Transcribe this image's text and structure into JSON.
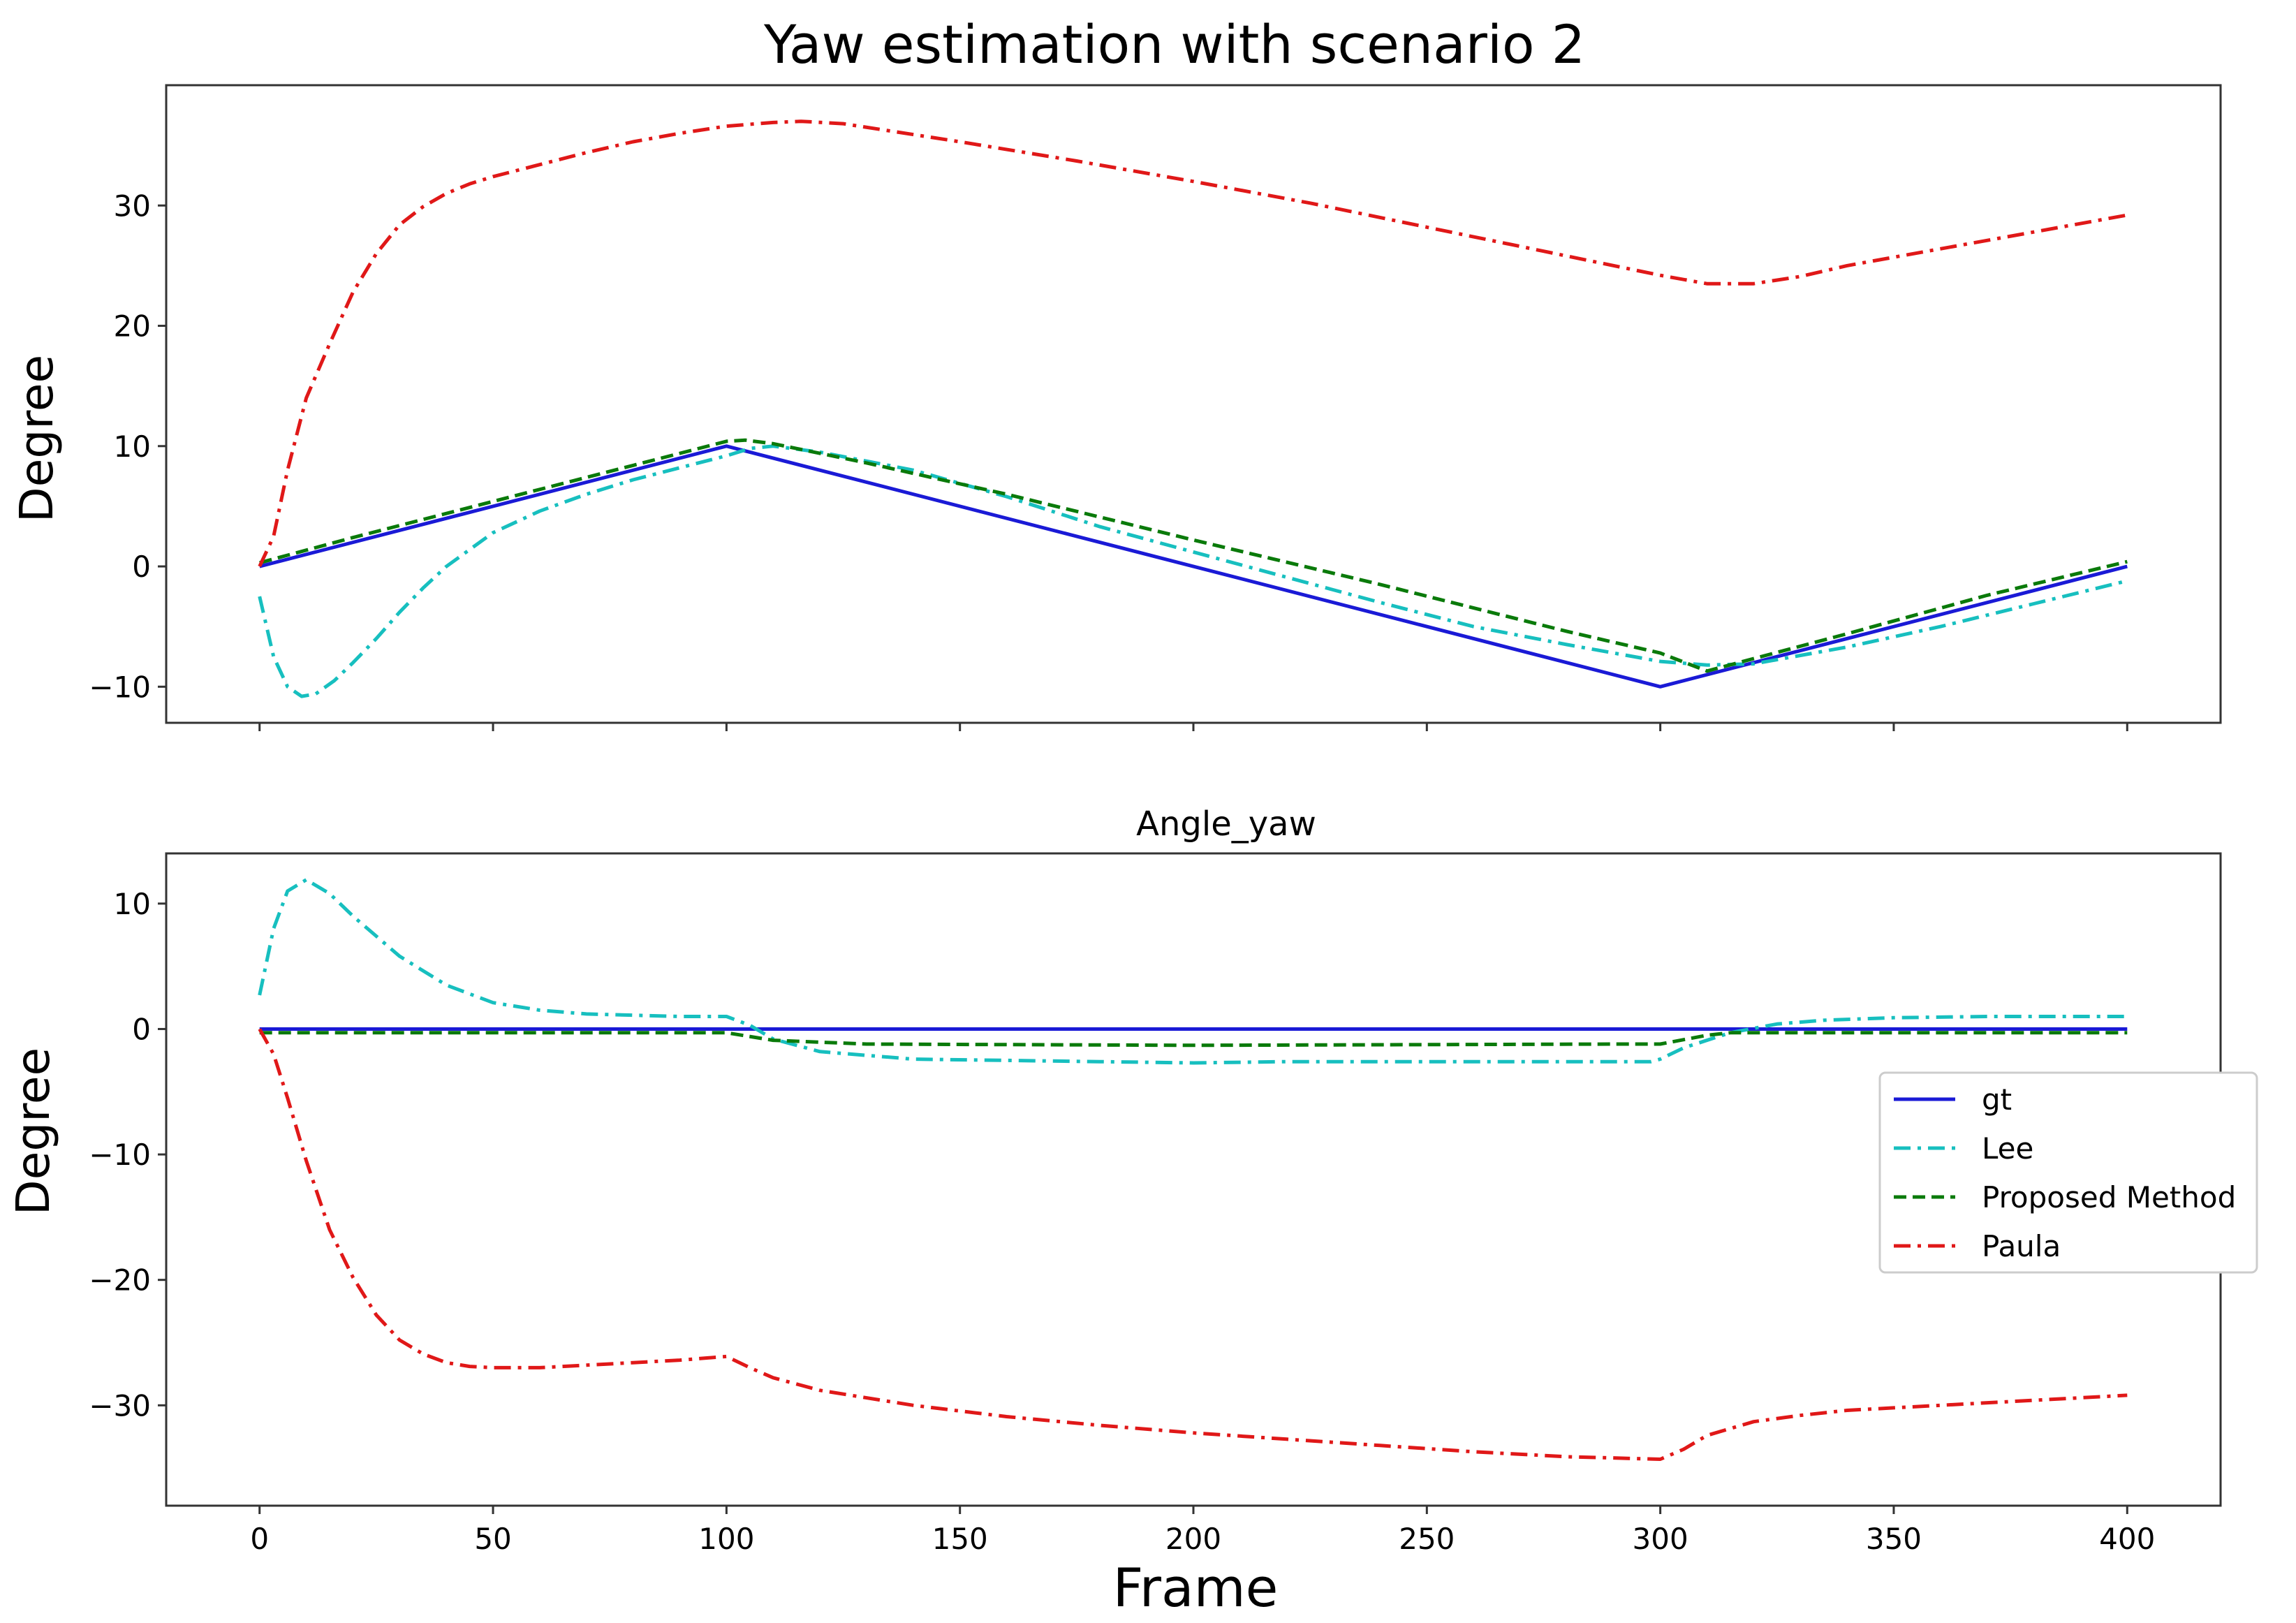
{
  "figure": {
    "title": "Yaw estimation with scenario 2"
  },
  "colors": {
    "gt": "#1a1ad6",
    "Lee": "#17bfbf",
    "Proposed Method": "#0a7a0a",
    "Paula": "#e01818",
    "frame": "#333333"
  },
  "legend": {
    "location": "center-right",
    "entries": [
      "gt",
      "Lee",
      "Proposed Method",
      "Paula"
    ]
  },
  "chart_data": [
    {
      "type": "line",
      "title": "Yaw estimation with scenario 2",
      "xlabel": "",
      "ylabel": "Degree",
      "xlim": [
        -20,
        420
      ],
      "ylim": [
        -13,
        40
      ],
      "xticks": [
        0,
        50,
        100,
        150,
        200,
        250,
        300,
        350,
        400
      ],
      "show_xtick_labels": false,
      "yticks": [
        -10,
        0,
        10,
        20,
        30
      ],
      "ytick_labels": [
        "−10",
        "0",
        "10",
        "20",
        "30"
      ],
      "series": [
        {
          "name": "gt",
          "style": "solid",
          "x": [
            0,
            100,
            300,
            400
          ],
          "y": [
            0,
            10,
            -10,
            0
          ]
        },
        {
          "name": "Lee",
          "style": "dashdot",
          "x": [
            0,
            3,
            6,
            9,
            12,
            16,
            20,
            25,
            30,
            35,
            40,
            50,
            60,
            70,
            80,
            90,
            100,
            105,
            110,
            120,
            140,
            160,
            180,
            200,
            220,
            240,
            260,
            280,
            300,
            310,
            320,
            340,
            360,
            380,
            400
          ],
          "y": [
            -2.5,
            -7.5,
            -10,
            -10.8,
            -10.6,
            -9.5,
            -8,
            -6,
            -3.8,
            -1.8,
            0,
            2.8,
            4.6,
            6,
            7.2,
            8.2,
            9.2,
            9.8,
            10,
            9.5,
            8,
            5.8,
            3.3,
            1.2,
            -0.9,
            -3,
            -5,
            -6.5,
            -7.9,
            -8.2,
            -8.1,
            -6.7,
            -5,
            -3.1,
            -1.2
          ]
        },
        {
          "name": "Proposed Method",
          "style": "dashed",
          "x": [
            0,
            20,
            50,
            80,
            100,
            104,
            110,
            130,
            160,
            200,
            240,
            280,
            300,
            310,
            340,
            370,
            400
          ],
          "y": [
            0.3,
            2.4,
            5.4,
            8.4,
            10.4,
            10.5,
            10.2,
            8.6,
            6,
            2.2,
            -1.5,
            -5.4,
            -7.2,
            -8.7,
            -5.6,
            -2.4,
            0.4
          ]
        },
        {
          "name": "Paula",
          "style": "dashdot",
          "x": [
            0,
            3,
            6,
            10,
            15,
            20,
            25,
            30,
            35,
            40,
            45,
            50,
            60,
            70,
            80,
            90,
            100,
            110,
            116,
            125,
            150,
            175,
            200,
            225,
            250,
            275,
            300,
            310,
            320,
            330,
            340,
            360,
            380,
            400
          ],
          "y": [
            0,
            2.5,
            8,
            14,
            18.5,
            22.8,
            26,
            28.4,
            29.9,
            31,
            31.8,
            32.4,
            33.4,
            34.4,
            35.3,
            36,
            36.6,
            36.9,
            37,
            36.8,
            35.3,
            33.7,
            32,
            30.2,
            28.2,
            26.2,
            24.2,
            23.5,
            23.5,
            24.1,
            25,
            26.4,
            27.8,
            29.2
          ]
        }
      ]
    },
    {
      "type": "line",
      "title": "Angle_yaw",
      "xlabel": "Frame",
      "ylabel": "Degree",
      "xlim": [
        -20,
        420
      ],
      "ylim": [
        -38,
        14
      ],
      "xticks": [
        0,
        50,
        100,
        150,
        200,
        250,
        300,
        350,
        400
      ],
      "show_xtick_labels": true,
      "yticks": [
        -30,
        -20,
        -10,
        0,
        10
      ],
      "ytick_labels": [
        "−30",
        "−20",
        "−10",
        "0",
        "10"
      ],
      "series": [
        {
          "name": "gt",
          "style": "solid",
          "x": [
            0,
            400
          ],
          "y": [
            0,
            0
          ]
        },
        {
          "name": "Lee",
          "style": "dashdot",
          "x": [
            0,
            3,
            6,
            10,
            15,
            20,
            30,
            40,
            50,
            60,
            70,
            80,
            90,
            100,
            105,
            110,
            120,
            140,
            160,
            180,
            200,
            220,
            240,
            260,
            280,
            298,
            300,
            305,
            315,
            325,
            335,
            350,
            370,
            400
          ],
          "y": [
            2.7,
            8,
            11,
            11.9,
            10.8,
            9,
            5.8,
            3.5,
            2.1,
            1.5,
            1.2,
            1.1,
            1,
            1,
            0.3,
            -0.8,
            -1.8,
            -2.4,
            -2.5,
            -2.6,
            -2.7,
            -2.6,
            -2.6,
            -2.6,
            -2.6,
            -2.6,
            -2.4,
            -1.5,
            -0.3,
            0.4,
            0.7,
            0.9,
            1,
            1
          ]
        },
        {
          "name": "Proposed Method",
          "style": "dashed",
          "x": [
            0,
            100,
            110,
            130,
            200,
            290,
            300,
            310,
            315,
            400
          ],
          "y": [
            -0.3,
            -0.3,
            -0.9,
            -1.2,
            -1.3,
            -1.2,
            -1.2,
            -0.5,
            -0.3,
            -0.3
          ]
        },
        {
          "name": "Paula",
          "style": "dashdot",
          "x": [
            0,
            3,
            6,
            10,
            15,
            20,
            25,
            30,
            35,
            40,
            45,
            50,
            55,
            60,
            70,
            80,
            90,
            100,
            105,
            110,
            120,
            140,
            160,
            180,
            200,
            220,
            240,
            260,
            280,
            300,
            305,
            310,
            320,
            330,
            340,
            360,
            380,
            400
          ],
          "y": [
            0,
            -2,
            -5.5,
            -10.5,
            -16,
            -19.8,
            -22.8,
            -24.8,
            -25.9,
            -26.6,
            -26.9,
            -27,
            -27,
            -27,
            -26.8,
            -26.6,
            -26.4,
            -26.1,
            -27,
            -27.8,
            -28.8,
            -30,
            -30.9,
            -31.6,
            -32.2,
            -32.7,
            -33.2,
            -33.7,
            -34.1,
            -34.3,
            -33.5,
            -32.4,
            -31.3,
            -30.8,
            -30.4,
            -30,
            -29.6,
            -29.2
          ]
        }
      ]
    }
  ]
}
